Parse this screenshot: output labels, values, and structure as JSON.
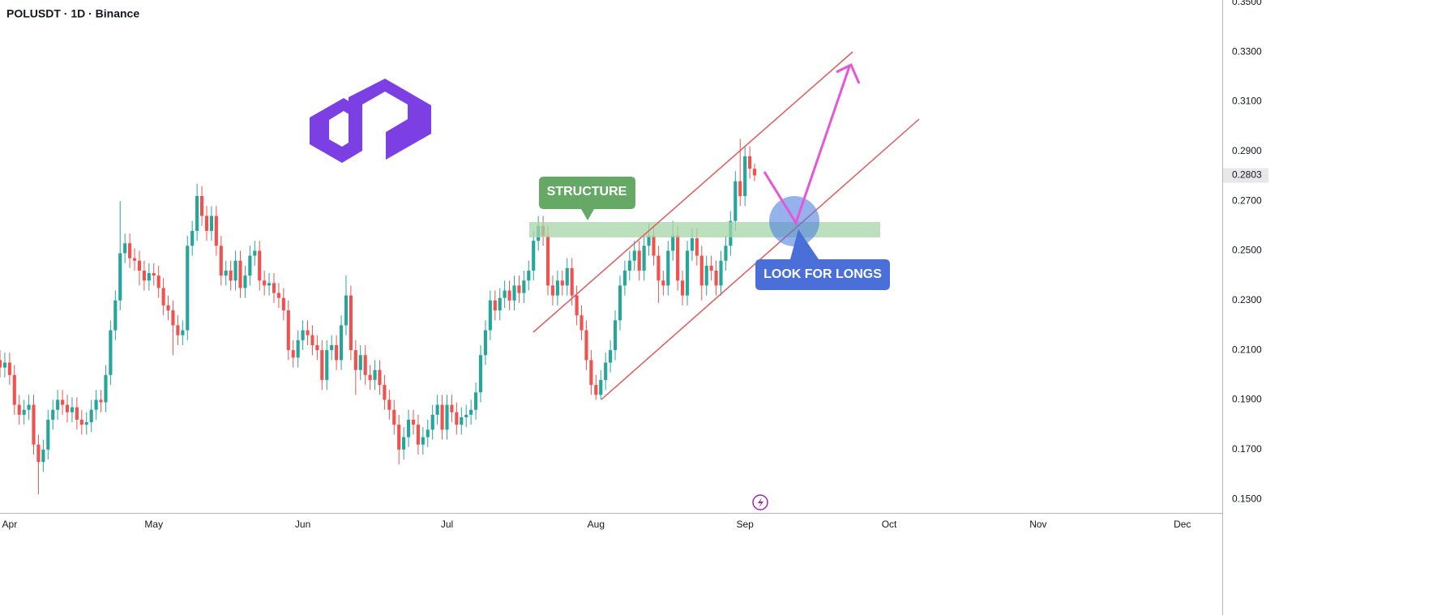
{
  "chart_data": {
    "type": "candlestick",
    "title": "POLUSDT · 1D · Binance",
    "up_color": "#26a69a",
    "down_color": "#ef5350",
    "ylim": [
      0.1445,
      0.3509
    ],
    "yticks": [
      {
        "value": 0.15,
        "label": "0.1500"
      },
      {
        "value": 0.17,
        "label": "0.1700"
      },
      {
        "value": 0.19,
        "label": "0.1900"
      },
      {
        "value": 0.21,
        "label": "0.2100"
      },
      {
        "value": 0.23,
        "label": "0.2300"
      },
      {
        "value": 0.25,
        "label": "0.2500"
      },
      {
        "value": 0.27,
        "label": "0.2700"
      },
      {
        "value": 0.29,
        "label": "0.2900"
      },
      {
        "value": 0.31,
        "label": "0.3100"
      },
      {
        "value": 0.33,
        "label": "0.3300"
      },
      {
        "value": 0.35,
        "label": "0.3500"
      }
    ],
    "xlim": [
      0,
      254.3
    ],
    "xticks": [
      {
        "value": 2,
        "label": "Apr"
      },
      {
        "value": 32,
        "label": "May"
      },
      {
        "value": 63,
        "label": "Jun"
      },
      {
        "value": 93,
        "label": "Jul"
      },
      {
        "value": 124,
        "label": "Aug"
      },
      {
        "value": 155,
        "label": "Sep"
      },
      {
        "value": 185,
        "label": "Oct"
      },
      {
        "value": 216,
        "label": "Nov"
      },
      {
        "value": 246,
        "label": "Dec"
      }
    ],
    "last_price": {
      "value": 0.2803,
      "label": "0.2803"
    },
    "annotations": [
      "STRUCTURE",
      "LOOK FOR LONGS"
    ],
    "open": [
      0.206,
      0.203,
      0.205,
      0.2,
      0.188,
      0.184,
      0.186,
      0.188,
      0.172,
      0.165,
      0.17,
      0.182,
      0.186,
      0.19,
      0.188,
      0.185,
      0.187,
      0.182,
      0.18,
      0.181,
      0.186,
      0.19,
      0.189,
      0.2,
      0.218,
      0.23,
      0.249,
      0.253,
      0.247,
      0.246,
      0.242,
      0.238,
      0.241,
      0.24,
      0.235,
      0.228,
      0.226,
      0.22,
      0.216,
      0.218,
      0.252,
      0.258,
      0.272,
      0.264,
      0.258,
      0.264,
      0.252,
      0.24,
      0.242,
      0.238,
      0.246,
      0.235,
      0.24,
      0.248,
      0.25,
      0.238,
      0.236,
      0.237,
      0.233,
      0.231,
      0.226,
      0.21,
      0.207,
      0.214,
      0.218,
      0.216,
      0.212,
      0.21,
      0.198,
      0.21,
      0.212,
      0.206,
      0.22,
      0.232,
      0.21,
      0.202,
      0.208,
      0.2,
      0.198,
      0.202,
      0.196,
      0.19,
      0.186,
      0.18,
      0.17,
      0.175,
      0.182,
      0.18,
      0.172,
      0.175,
      0.178,
      0.184,
      0.188,
      0.178,
      0.188,
      0.185,
      0.18,
      0.183,
      0.184,
      0.186,
      0.193,
      0.208,
      0.218,
      0.23,
      0.226,
      0.231,
      0.234,
      0.23,
      0.236,
      0.233,
      0.238,
      0.242,
      0.254,
      0.26,
      0.256,
      0.236,
      0.232,
      0.238,
      0.236,
      0.243,
      0.232,
      0.224,
      0.218,
      0.206,
      0.196,
      0.192,
      0.198,
      0.205,
      0.21,
      0.222,
      0.236,
      0.242,
      0.246,
      0.25,
      0.242,
      0.252,
      0.256,
      0.248,
      0.238,
      0.236,
      0.25,
      0.256,
      0.238,
      0.232,
      0.25,
      0.255,
      0.248,
      0.236,
      0.244,
      0.242,
      0.236,
      0.246,
      0.252,
      0.262,
      0.278,
      0.272,
      0.288,
      0.283
    ],
    "high": [
      0.21,
      0.209,
      0.209,
      0.204,
      0.192,
      0.19,
      0.192,
      0.192,
      0.176,
      0.174,
      0.186,
      0.19,
      0.194,
      0.194,
      0.192,
      0.191,
      0.191,
      0.186,
      0.185,
      0.19,
      0.194,
      0.194,
      0.204,
      0.222,
      0.234,
      0.27,
      0.257,
      0.257,
      0.251,
      0.25,
      0.246,
      0.245,
      0.245,
      0.244,
      0.239,
      0.232,
      0.23,
      0.224,
      0.222,
      0.256,
      0.262,
      0.277,
      0.276,
      0.268,
      0.268,
      0.268,
      0.256,
      0.246,
      0.246,
      0.25,
      0.25,
      0.244,
      0.252,
      0.254,
      0.254,
      0.242,
      0.241,
      0.241,
      0.237,
      0.235,
      0.23,
      0.214,
      0.218,
      0.222,
      0.222,
      0.22,
      0.216,
      0.214,
      0.214,
      0.216,
      0.216,
      0.224,
      0.24,
      0.236,
      0.214,
      0.212,
      0.212,
      0.204,
      0.206,
      0.206,
      0.2,
      0.194,
      0.19,
      0.184,
      0.179,
      0.186,
      0.186,
      0.184,
      0.179,
      0.182,
      0.188,
      0.192,
      0.192,
      0.192,
      0.192,
      0.189,
      0.187,
      0.188,
      0.19,
      0.197,
      0.212,
      0.222,
      0.234,
      0.234,
      0.235,
      0.238,
      0.238,
      0.24,
      0.24,
      0.242,
      0.246,
      0.258,
      0.264,
      0.264,
      0.26,
      0.24,
      0.242,
      0.242,
      0.247,
      0.247,
      0.236,
      0.228,
      0.222,
      0.21,
      0.2,
      0.202,
      0.209,
      0.214,
      0.226,
      0.24,
      0.246,
      0.25,
      0.254,
      0.254,
      0.256,
      0.261,
      0.26,
      0.252,
      0.242,
      0.254,
      0.262,
      0.26,
      0.242,
      0.254,
      0.259,
      0.259,
      0.252,
      0.248,
      0.248,
      0.246,
      0.25,
      0.256,
      0.266,
      0.282,
      0.295,
      0.292,
      0.292,
      0.285
    ],
    "low": [
      0.199,
      0.199,
      0.196,
      0.184,
      0.18,
      0.18,
      0.182,
      0.168,
      0.152,
      0.161,
      0.166,
      0.178,
      0.182,
      0.184,
      0.181,
      0.181,
      0.178,
      0.176,
      0.176,
      0.177,
      0.182,
      0.185,
      0.185,
      0.196,
      0.214,
      0.226,
      0.245,
      0.243,
      0.242,
      0.236,
      0.234,
      0.234,
      0.236,
      0.231,
      0.224,
      0.222,
      0.208,
      0.212,
      0.212,
      0.214,
      0.248,
      0.254,
      0.26,
      0.254,
      0.254,
      0.248,
      0.236,
      0.236,
      0.234,
      0.234,
      0.231,
      0.231,
      0.236,
      0.244,
      0.234,
      0.232,
      0.232,
      0.229,
      0.227,
      0.222,
      0.206,
      0.203,
      0.203,
      0.21,
      0.212,
      0.208,
      0.206,
      0.194,
      0.194,
      0.206,
      0.202,
      0.202,
      0.216,
      0.206,
      0.192,
      0.198,
      0.196,
      0.194,
      0.194,
      0.192,
      0.186,
      0.182,
      0.176,
      0.164,
      0.166,
      0.171,
      0.176,
      0.168,
      0.168,
      0.171,
      0.174,
      0.18,
      0.174,
      0.174,
      0.181,
      0.176,
      0.176,
      0.179,
      0.18,
      0.182,
      0.189,
      0.204,
      0.214,
      0.222,
      0.222,
      0.227,
      0.226,
      0.226,
      0.229,
      0.229,
      0.234,
      0.238,
      0.25,
      0.252,
      0.232,
      0.228,
      0.228,
      0.232,
      0.232,
      0.228,
      0.22,
      0.214,
      0.202,
      0.192,
      0.19,
      0.19,
      0.194,
      0.201,
      0.206,
      0.218,
      0.232,
      0.238,
      0.242,
      0.238,
      0.238,
      0.248,
      0.244,
      0.229,
      0.232,
      0.232,
      0.246,
      0.234,
      0.228,
      0.228,
      0.246,
      0.244,
      0.23,
      0.232,
      0.238,
      0.232,
      0.232,
      0.242,
      0.248,
      0.258,
      0.268,
      0.268,
      0.279,
      0.278
    ],
    "close": [
      0.203,
      0.205,
      0.2,
      0.188,
      0.184,
      0.186,
      0.188,
      0.172,
      0.165,
      0.17,
      0.182,
      0.186,
      0.19,
      0.188,
      0.185,
      0.187,
      0.182,
      0.18,
      0.181,
      0.186,
      0.19,
      0.189,
      0.2,
      0.218,
      0.23,
      0.249,
      0.253,
      0.247,
      0.246,
      0.242,
      0.238,
      0.241,
      0.24,
      0.235,
      0.228,
      0.226,
      0.22,
      0.216,
      0.218,
      0.252,
      0.258,
      0.272,
      0.264,
      0.258,
      0.264,
      0.252,
      0.24,
      0.242,
      0.238,
      0.246,
      0.235,
      0.24,
      0.248,
      0.25,
      0.238,
      0.236,
      0.237,
      0.233,
      0.231,
      0.226,
      0.21,
      0.207,
      0.214,
      0.218,
      0.216,
      0.212,
      0.21,
      0.198,
      0.21,
      0.212,
      0.206,
      0.22,
      0.232,
      0.21,
      0.202,
      0.208,
      0.2,
      0.198,
      0.202,
      0.196,
      0.19,
      0.186,
      0.18,
      0.17,
      0.175,
      0.182,
      0.18,
      0.172,
      0.175,
      0.178,
      0.184,
      0.188,
      0.178,
      0.188,
      0.185,
      0.18,
      0.183,
      0.184,
      0.186,
      0.193,
      0.208,
      0.218,
      0.23,
      0.226,
      0.231,
      0.234,
      0.23,
      0.236,
      0.233,
      0.238,
      0.242,
      0.254,
      0.26,
      0.256,
      0.236,
      0.232,
      0.238,
      0.236,
      0.243,
      0.232,
      0.224,
      0.218,
      0.206,
      0.196,
      0.192,
      0.198,
      0.205,
      0.21,
      0.222,
      0.236,
      0.242,
      0.246,
      0.25,
      0.242,
      0.252,
      0.256,
      0.248,
      0.238,
      0.236,
      0.25,
      0.256,
      0.238,
      0.232,
      0.25,
      0.255,
      0.248,
      0.236,
      0.244,
      0.242,
      0.236,
      0.246,
      0.252,
      0.262,
      0.278,
      0.272,
      0.288,
      0.283,
      0.2803
    ]
  }
}
